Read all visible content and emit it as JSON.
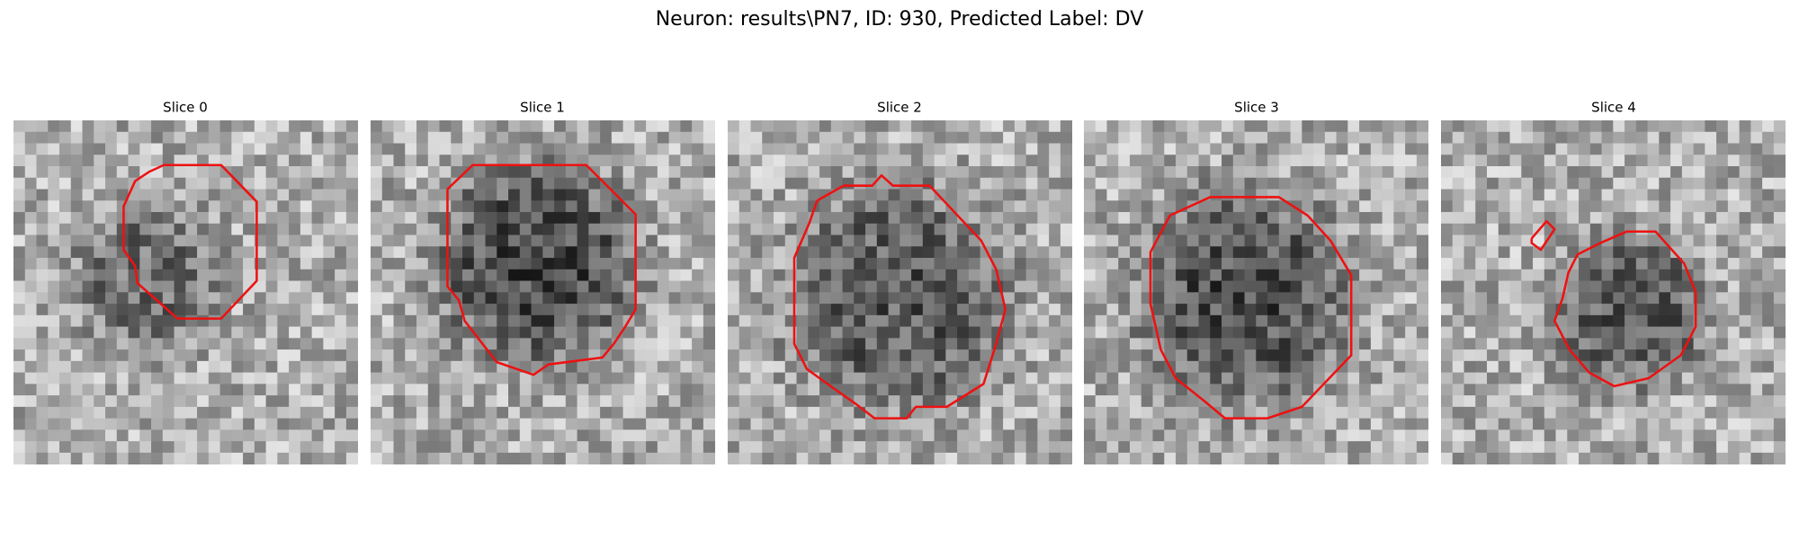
{
  "header": {
    "title": "Neuron: results\\PN7, ID: 930, Predicted Label: DV"
  },
  "panels": [
    {
      "title": "Slice 0"
    },
    {
      "title": "Slice 1"
    },
    {
      "title": "Slice 2"
    },
    {
      "title": "Slice 3"
    },
    {
      "title": "Slice 4"
    }
  ]
}
